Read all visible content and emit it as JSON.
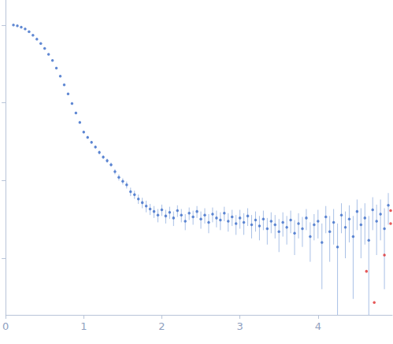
{
  "chart_data": {
    "type": "scatter",
    "log": "y",
    "grid": false,
    "tick_labels": "x",
    "xlim": [
      0,
      4.95
    ],
    "xticks": [
      0,
      1,
      2,
      3,
      4
    ],
    "ylim": [
      0.000187,
      2.1
    ],
    "yticks": [
      0.001,
      0.01,
      0.1,
      1
    ],
    "series": [
      {
        "color": "#3d6ec9",
        "x": [
          0.1,
          0.15,
          0.2,
          0.25,
          0.3,
          0.35,
          0.4,
          0.45,
          0.5,
          0.55,
          0.6,
          0.65,
          0.7,
          0.75,
          0.8,
          0.85,
          0.9,
          0.95,
          1.0,
          1.05,
          1.1,
          1.15,
          1.2,
          1.25,
          1.3,
          1.35,
          1.4,
          1.45,
          1.5,
          1.55,
          1.6,
          1.65,
          1.7,
          1.75,
          1.8,
          1.85,
          1.9,
          1.95,
          2.0,
          2.05,
          2.1,
          2.15,
          2.2,
          2.25,
          2.3,
          2.35,
          2.4,
          2.45,
          2.5,
          2.55,
          2.6,
          2.65,
          2.7,
          2.75,
          2.8,
          2.85,
          2.9,
          2.95,
          3.0,
          3.05,
          3.1,
          3.15,
          3.2,
          3.25,
          3.3,
          3.35,
          3.4,
          3.45,
          3.5,
          3.55,
          3.6,
          3.65,
          3.7,
          3.75,
          3.8,
          3.85,
          3.9,
          3.95,
          4.0,
          4.05,
          4.1,
          4.15,
          4.2,
          4.25,
          4.3,
          4.35,
          4.4,
          4.45,
          4.5,
          4.55,
          4.6,
          4.65,
          4.7,
          4.75,
          4.8,
          4.85,
          4.9
        ],
        "values": [
          1.0,
          0.98,
          0.94,
          0.89,
          0.82,
          0.74,
          0.66,
          0.58,
          0.5,
          0.42,
          0.35,
          0.28,
          0.22,
          0.17,
          0.13,
          0.098,
          0.074,
          0.056,
          0.042,
          0.036,
          0.031,
          0.027,
          0.023,
          0.02,
          0.018,
          0.016,
          0.013,
          0.011,
          0.0098,
          0.0088,
          0.0072,
          0.0066,
          0.0058,
          0.0052,
          0.0047,
          0.0043,
          0.004,
          0.0036,
          0.0042,
          0.0035,
          0.0039,
          0.0033,
          0.0041,
          0.0036,
          0.003,
          0.0038,
          0.0034,
          0.004,
          0.0032,
          0.0036,
          0.0029,
          0.0037,
          0.0033,
          0.0031,
          0.0038,
          0.003,
          0.0034,
          0.0028,
          0.0033,
          0.0029,
          0.0035,
          0.0027,
          0.0031,
          0.0026,
          0.0032,
          0.0024,
          0.003,
          0.0027,
          0.0022,
          0.0029,
          0.0025,
          0.0031,
          0.0021,
          0.0028,
          0.0024,
          0.0033,
          0.0019,
          0.0027,
          0.003,
          0.0016,
          0.0034,
          0.0022,
          0.0029,
          0.0014,
          0.0036,
          0.0025,
          0.0032,
          0.0019,
          0.004,
          0.0027,
          0.0033,
          0.0017,
          0.0042,
          0.003,
          0.0037,
          0.0024,
          0.0048
        ],
        "errors": [
          0.004,
          0.004,
          0.004,
          0.004,
          0.004,
          0.004,
          0.003,
          0.003,
          0.003,
          0.003,
          0.003,
          0.003,
          0.002,
          0.002,
          0.002,
          0.002,
          0.002,
          0.002,
          0.0015,
          0.0014,
          0.0013,
          0.0012,
          0.0012,
          0.0011,
          0.0011,
          0.001,
          0.001,
          0.001,
          0.0009,
          0.0009,
          0.0009,
          0.0008,
          0.0008,
          0.0008,
          0.0008,
          0.0007,
          0.0007,
          0.0007,
          0.0007,
          0.0007,
          0.0007,
          0.0007,
          0.0007,
          0.0007,
          0.0007,
          0.0007,
          0.0007,
          0.0007,
          0.0008,
          0.0008,
          0.0008,
          0.0008,
          0.0008,
          0.0008,
          0.0008,
          0.0008,
          0.0008,
          0.0008,
          0.0009,
          0.0009,
          0.0009,
          0.0009,
          0.0009,
          0.0009,
          0.0009,
          0.0009,
          0.0009,
          0.0009,
          0.001,
          0.001,
          0.001,
          0.001,
          0.001,
          0.001,
          0.001,
          0.001,
          0.001,
          0.001,
          0.0012,
          0.0012,
          0.0013,
          0.0013,
          0.0014,
          0.0014,
          0.0015,
          0.0015,
          0.0016,
          0.0016,
          0.0017,
          0.0017,
          0.0018,
          0.0018,
          0.0019,
          0.0019,
          0.002,
          0.002,
          0.0021
        ]
      },
      {
        "color": "#e03030",
        "x": [
          4.62,
          4.72,
          4.85,
          4.93,
          4.93
        ],
        "values": [
          0.00068,
          0.00027,
          0.0011,
          0.0041,
          0.0028
        ]
      }
    ]
  }
}
